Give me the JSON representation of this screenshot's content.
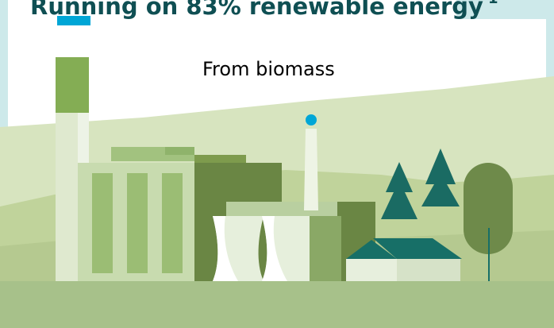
{
  "slide": {
    "title": "Running on 83% renewable energy",
    "footnote_marker": "1",
    "subtitle": "From biomass"
  },
  "illustration": {
    "icons": [
      "power-plant-icon",
      "cooling-tower-icon",
      "chimney-icon",
      "tree-icon",
      "house-icon"
    ],
    "colors": {
      "title_text": "#0f4f53",
      "accent_blue": "#00a6d6",
      "hill_light": "#c9d9ac",
      "hill_mid": "#b4cb8d",
      "ground": "#a7c18a",
      "building_green": "#6e8a4a",
      "building_light": "#a9c68b",
      "roof_teal": "#176f67",
      "tree_green": "#1a6b63"
    }
  }
}
